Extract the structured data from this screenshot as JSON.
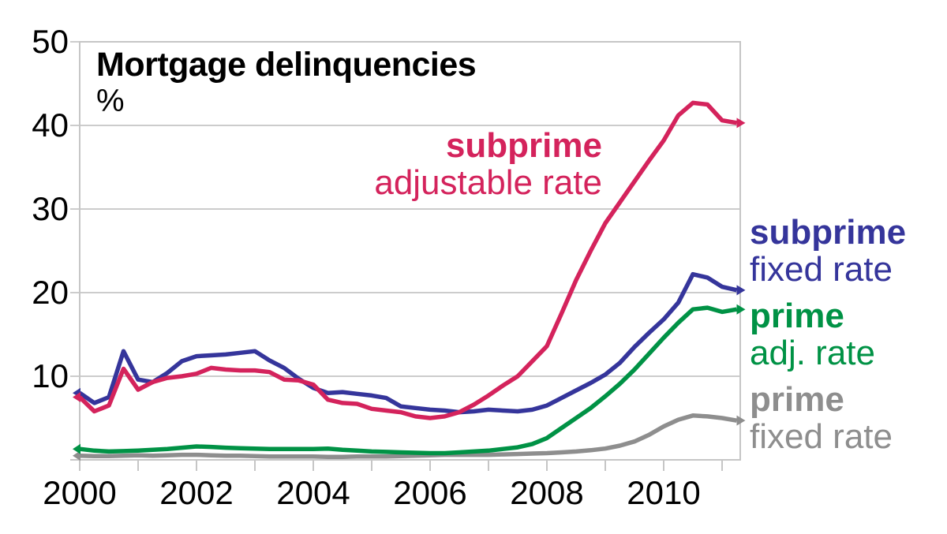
{
  "chart_data": {
    "type": "line",
    "title": "Mortgage delinquencies",
    "unit_label": "%",
    "x_start": 2000.0,
    "x_step": 0.25,
    "xlim": [
      2000,
      2011.32
    ],
    "ylim": [
      0,
      50
    ],
    "y_ticks": [
      10,
      20,
      30,
      40,
      50
    ],
    "x_ticks_major": [
      2000,
      2002,
      2004,
      2006,
      2008,
      2010
    ],
    "x_tick_labels": [
      "2000",
      "2002",
      "2004",
      "2006",
      "2008",
      "2010"
    ],
    "x_ticks_minor": [
      2000,
      2001,
      2002,
      2003,
      2004,
      2005,
      2006,
      2007,
      2008,
      2009,
      2010,
      2011
    ],
    "grid": true,
    "grid_color": "#cccccc",
    "axis_color": "#c6c6c6",
    "text_color": "#000000",
    "legend_position": "right and inside top",
    "series": [
      {
        "name": "prime fixed rate",
        "label_line1": "prime",
        "label_line2": "fixed rate",
        "color": "#8e8e8e",
        "values": [
          0.5,
          0.45,
          0.45,
          0.5,
          0.55,
          0.5,
          0.55,
          0.6,
          0.6,
          0.55,
          0.5,
          0.5,
          0.45,
          0.4,
          0.4,
          0.4,
          0.4,
          0.35,
          0.35,
          0.4,
          0.4,
          0.4,
          0.45,
          0.5,
          0.55,
          0.6,
          0.6,
          0.6,
          0.6,
          0.65,
          0.7,
          0.75,
          0.8,
          0.9,
          1.0,
          1.15,
          1.35,
          1.7,
          2.2,
          3.0,
          4.0,
          4.8,
          5.3,
          5.2,
          5.0,
          4.7
        ]
      },
      {
        "name": "prime adjustable rate",
        "label_line1": "prime",
        "label_line2": "adj. rate",
        "color": "#009245",
        "values": [
          1.3,
          1.1,
          1.0,
          1.05,
          1.1,
          1.2,
          1.3,
          1.45,
          1.6,
          1.55,
          1.45,
          1.4,
          1.35,
          1.3,
          1.3,
          1.3,
          1.3,
          1.35,
          1.2,
          1.1,
          1.0,
          0.95,
          0.9,
          0.85,
          0.8,
          0.8,
          0.9,
          1.0,
          1.1,
          1.3,
          1.5,
          1.9,
          2.6,
          3.8,
          5.0,
          6.2,
          7.6,
          9.1,
          10.8,
          12.7,
          14.6,
          16.4,
          18.0,
          18.2,
          17.7,
          18.0
        ]
      },
      {
        "name": "subprime fixed rate",
        "label_line1": "subprime",
        "label_line2": "fixed rate",
        "color": "#35359b",
        "values": [
          8.0,
          6.8,
          7.5,
          13.0,
          9.6,
          9.3,
          10.4,
          11.8,
          12.4,
          12.5,
          12.6,
          12.8,
          13.0,
          11.9,
          11.0,
          9.7,
          8.6,
          8.0,
          8.1,
          7.9,
          7.7,
          7.4,
          6.4,
          6.2,
          6.0,
          5.9,
          5.7,
          5.8,
          6.0,
          5.9,
          5.8,
          6.0,
          6.5,
          7.4,
          8.3,
          9.2,
          10.2,
          11.6,
          13.5,
          15.2,
          16.8,
          18.8,
          22.2,
          21.8,
          20.7,
          20.3
        ]
      },
      {
        "name": "subprime adjustable rate",
        "label_line1": "subprime",
        "label_line2": "adjustable rate",
        "color": "#d4235c",
        "values": [
          7.5,
          5.8,
          6.5,
          10.9,
          8.4,
          9.3,
          9.8,
          10.0,
          10.3,
          11.0,
          10.8,
          10.7,
          10.7,
          10.5,
          9.6,
          9.5,
          9.0,
          7.2,
          6.8,
          6.7,
          6.1,
          5.9,
          5.7,
          5.2,
          5.0,
          5.2,
          5.7,
          6.6,
          7.7,
          8.9,
          10.0,
          11.8,
          13.6,
          17.5,
          21.5,
          25.0,
          28.3,
          30.8,
          33.3,
          35.8,
          38.2,
          41.2,
          42.7,
          42.5,
          40.6,
          40.3
        ]
      }
    ]
  }
}
